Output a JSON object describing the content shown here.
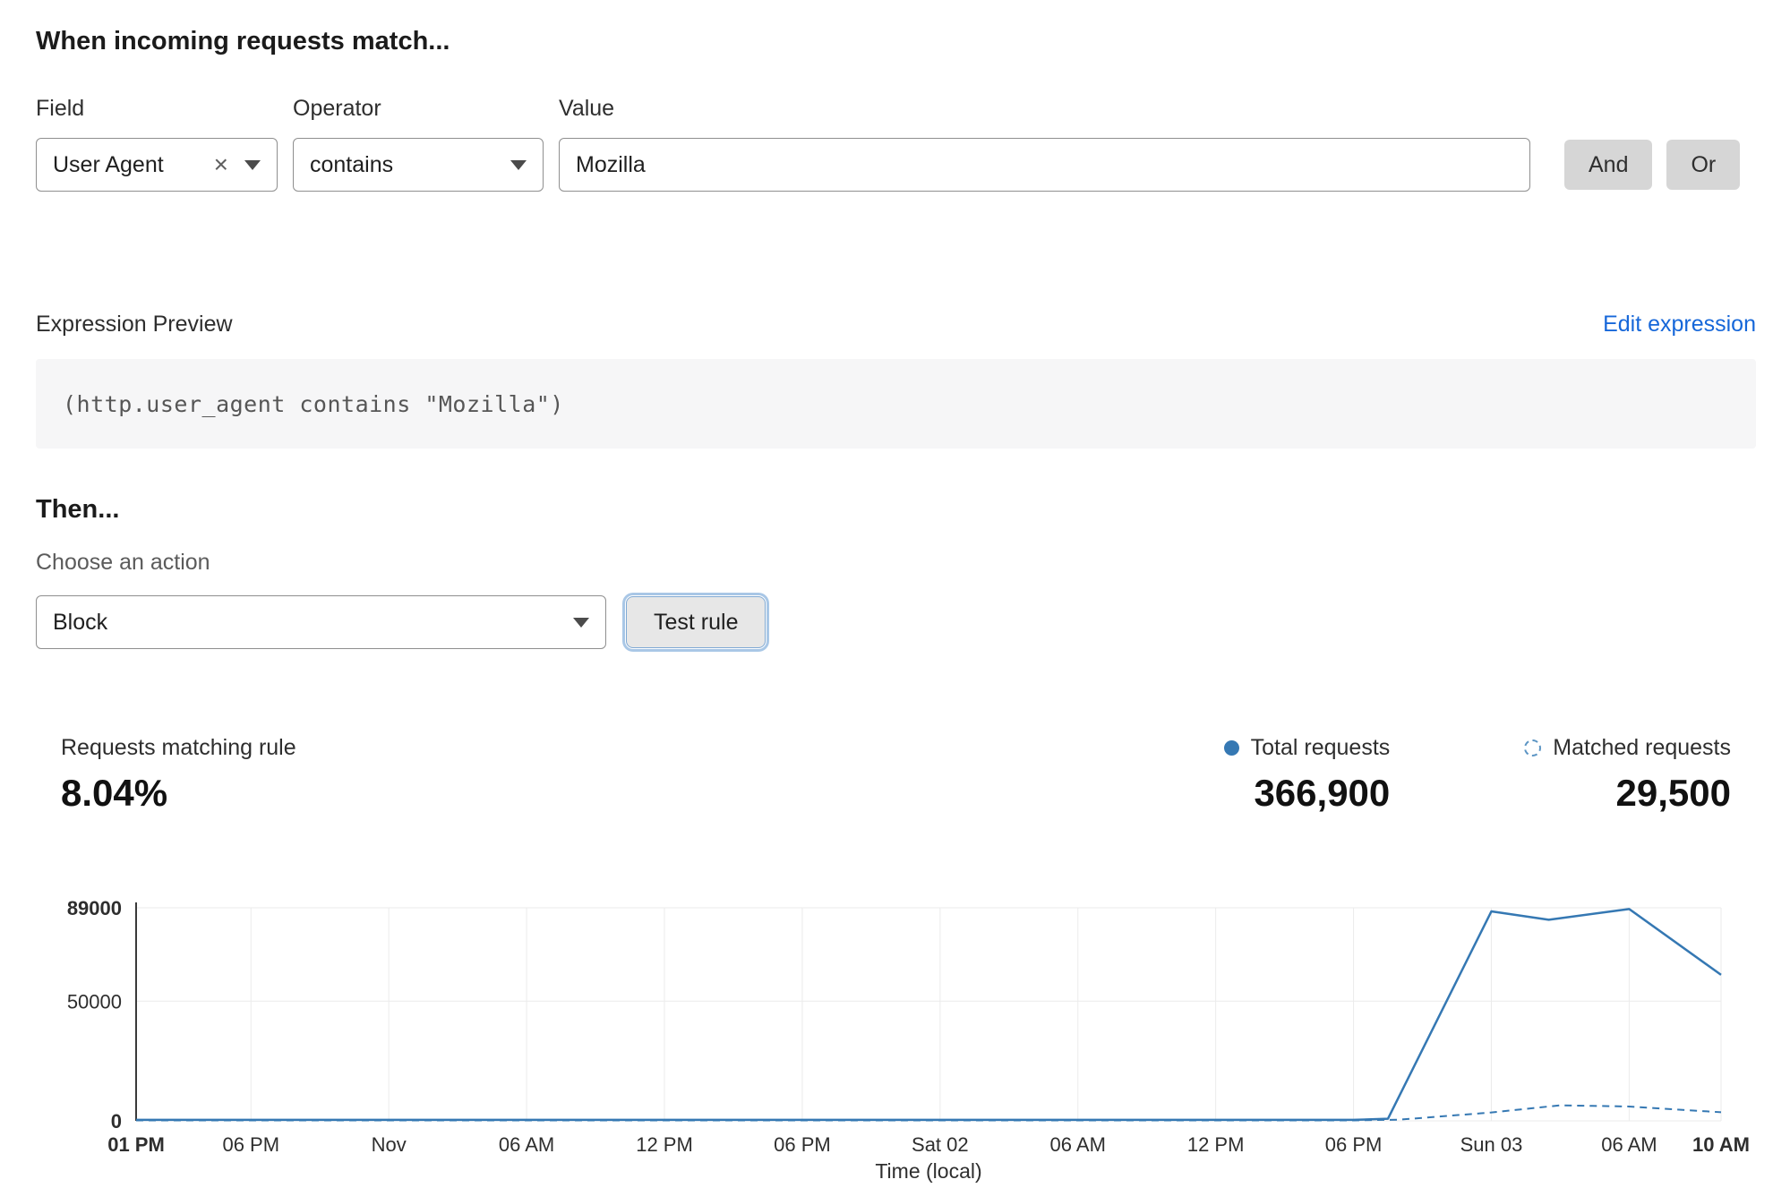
{
  "page": {
    "heading": "When incoming requests match..."
  },
  "icons": {
    "clear": "×"
  },
  "rule_builder": {
    "field": {
      "label": "Field",
      "value": "User Agent"
    },
    "operator": {
      "label": "Operator",
      "value": "contains"
    },
    "value": {
      "label": "Value",
      "text": "Mozilla"
    },
    "and_label": "And",
    "or_label": "Or"
  },
  "expression": {
    "label": "Expression Preview",
    "edit_link": "Edit expression",
    "code": "(http.user_agent contains \"Mozilla\")"
  },
  "action": {
    "heading": "Then...",
    "label": "Choose an action",
    "selected": "Block",
    "test_button": "Test rule"
  },
  "stats": {
    "matching": {
      "label": "Requests matching rule",
      "value": "8.04%"
    },
    "total": {
      "label": "Total requests",
      "value": "366,900"
    },
    "matched": {
      "label": "Matched requests",
      "value": "29,500"
    }
  },
  "chart_data": {
    "type": "line",
    "xlabel": "Time (local)",
    "ylim": [
      0,
      89000
    ],
    "line_color": "#3578b3",
    "grid_color": "#ebebeb",
    "axis_color": "#3a3a3a",
    "y_ticks": [
      {
        "value": 0,
        "label": "0",
        "bold": true
      },
      {
        "value": 50000,
        "label": "50000",
        "bold": false
      },
      {
        "value": 89000,
        "label": "89000",
        "bold": true
      }
    ],
    "x_ticks": [
      {
        "hour": 0,
        "label": "01 PM",
        "bold": true
      },
      {
        "hour": 5,
        "label": "06 PM",
        "bold": false
      },
      {
        "hour": 11,
        "label": "Nov",
        "bold": false
      },
      {
        "hour": 17,
        "label": "06 AM",
        "bold": false
      },
      {
        "hour": 23,
        "label": "12 PM",
        "bold": false
      },
      {
        "hour": 29,
        "label": "06 PM",
        "bold": false
      },
      {
        "hour": 35,
        "label": "Sat 02",
        "bold": false
      },
      {
        "hour": 41,
        "label": "06 AM",
        "bold": false
      },
      {
        "hour": 47,
        "label": "12 PM",
        "bold": false
      },
      {
        "hour": 53,
        "label": "06 PM",
        "bold": false
      },
      {
        "hour": 59,
        "label": "Sun 03",
        "bold": false
      },
      {
        "hour": 65,
        "label": "06 AM",
        "bold": false
      },
      {
        "hour": 69,
        "label": "10 AM",
        "bold": true
      }
    ],
    "series": [
      {
        "name": "Total requests",
        "style": "solid",
        "points": [
          [
            0,
            400
          ],
          [
            5,
            400
          ],
          [
            11,
            400
          ],
          [
            17,
            400
          ],
          [
            23,
            400
          ],
          [
            29,
            400
          ],
          [
            35,
            400
          ],
          [
            41,
            400
          ],
          [
            47,
            400
          ],
          [
            53,
            400
          ],
          [
            54.5,
            900
          ],
          [
            59,
            87500
          ],
          [
            61.5,
            84000
          ],
          [
            65,
            88500
          ],
          [
            69,
            61000
          ]
        ]
      },
      {
        "name": "Matched requests",
        "style": "dashed",
        "points": [
          [
            0,
            200
          ],
          [
            5,
            200
          ],
          [
            11,
            200
          ],
          [
            17,
            200
          ],
          [
            23,
            200
          ],
          [
            29,
            200
          ],
          [
            35,
            200
          ],
          [
            41,
            200
          ],
          [
            47,
            200
          ],
          [
            53,
            200
          ],
          [
            55,
            500
          ],
          [
            59,
            3500
          ],
          [
            62,
            6500
          ],
          [
            65,
            6000
          ],
          [
            69,
            3600
          ]
        ]
      }
    ]
  }
}
